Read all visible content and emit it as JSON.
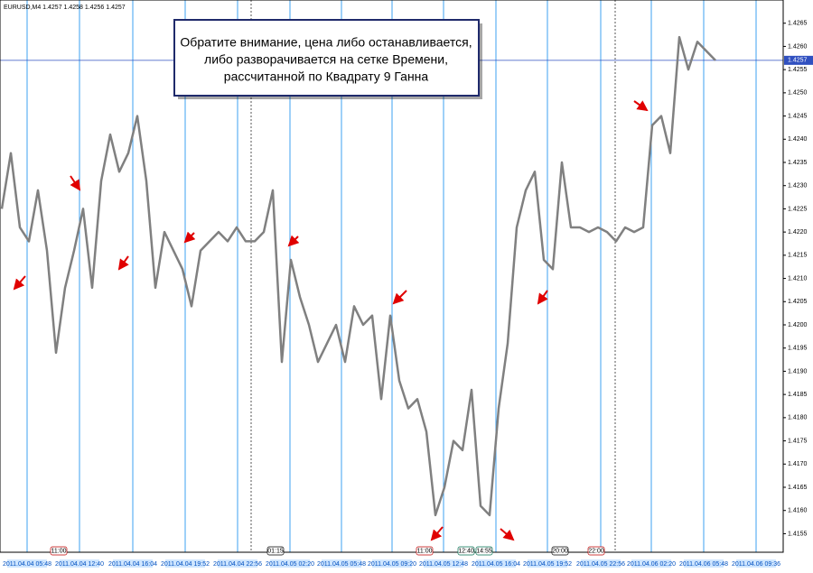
{
  "chart_data": {
    "type": "line",
    "title": "EURUSD,M4  1.4257 1.4258 1.4256 1.4257",
    "annotation": [
      "Обратите внимание, цена либо останавливается,",
      "либо разворачивается на сетке Времени,",
      "рассчитанной по Квадрату 9 Ганна"
    ],
    "color": "#808080",
    "values": [
      1.4225,
      1.4237,
      1.4221,
      1.4218,
      1.4229,
      1.4216,
      1.4194,
      1.4208,
      1.4216,
      1.4225,
      1.4208,
      1.4231,
      1.4241,
      1.4233,
      1.4237,
      1.4245,
      1.4231,
      1.4208,
      1.422,
      1.4216,
      1.4212,
      1.4204,
      1.4216,
      1.4218,
      1.422,
      1.4218,
      1.4221,
      1.4218,
      1.4218,
      1.422,
      1.4229,
      1.4192,
      1.4214,
      1.4206,
      1.42,
      1.4192,
      1.4196,
      1.42,
      1.4192,
      1.4204,
      1.42,
      1.4202,
      1.4184,
      1.4202,
      1.4188,
      1.4182,
      1.4184,
      1.4177,
      1.4159,
      1.4165,
      1.4175,
      1.4173,
      1.4186,
      1.4161,
      1.4159,
      1.4182,
      1.4196,
      1.4221,
      1.4229,
      1.4233,
      1.4214,
      1.4212,
      1.4235,
      1.4221,
      1.4221,
      1.422,
      1.4221,
      1.422,
      1.4218,
      1.4221,
      1.422,
      1.4221,
      1.4243,
      1.4245,
      1.4237,
      1.4262,
      1.4255,
      1.4261,
      1.4259,
      1.4257
    ],
    "current_price": 1.4257,
    "ylim": [
      1.4151,
      1.427
    ],
    "yticks": [
      1.4155,
      {
        "value": 1.416,
        "label": "1.4160"
      },
      1.4165,
      {
        "value": 1.417,
        "label": "1.4170"
      },
      1.4175,
      {
        "value": 1.418,
        "label": "1.4180"
      },
      1.4185,
      {
        "value": 1.419,
        "label": "1.4190"
      },
      1.4195,
      {
        "value": 1.42,
        "label": "1.4200"
      },
      1.4205,
      {
        "value": 1.421,
        "label": "1.4210"
      },
      1.4215,
      {
        "value": 1.422,
        "label": "1.4220"
      },
      1.4225,
      {
        "value": 1.423,
        "label": "1.4230"
      },
      1.4235,
      {
        "value": 1.424,
        "label": "1.4240"
      },
      1.4245,
      {
        "value": 1.425,
        "label": "1.4250"
      },
      1.4255,
      {
        "value": 1.426,
        "label": "1.4260"
      },
      1.4265
    ],
    "time_grid": [
      "2011.04.04 05:48",
      "2011.04.04 12:40",
      "2011.04.04 16:04",
      "2011.04.04 19:52",
      "2011.04.04 22:56",
      "2011.04.05 02:20",
      "2011.04.05 05:48",
      "2011.04.05 09:20",
      "2011.04.05 12:48",
      "2011.04.05 16:04",
      "2011.04.05 19:52",
      "2011.04.05 22:56",
      "2011.04.06 02:20",
      "2011.04.06 05:48",
      "2011.04.06 09:36"
    ],
    "time_markers": [
      "11:00",
      "01:15",
      "11:00",
      "12:40",
      "14:55",
      "20:00",
      "22:00"
    ]
  }
}
